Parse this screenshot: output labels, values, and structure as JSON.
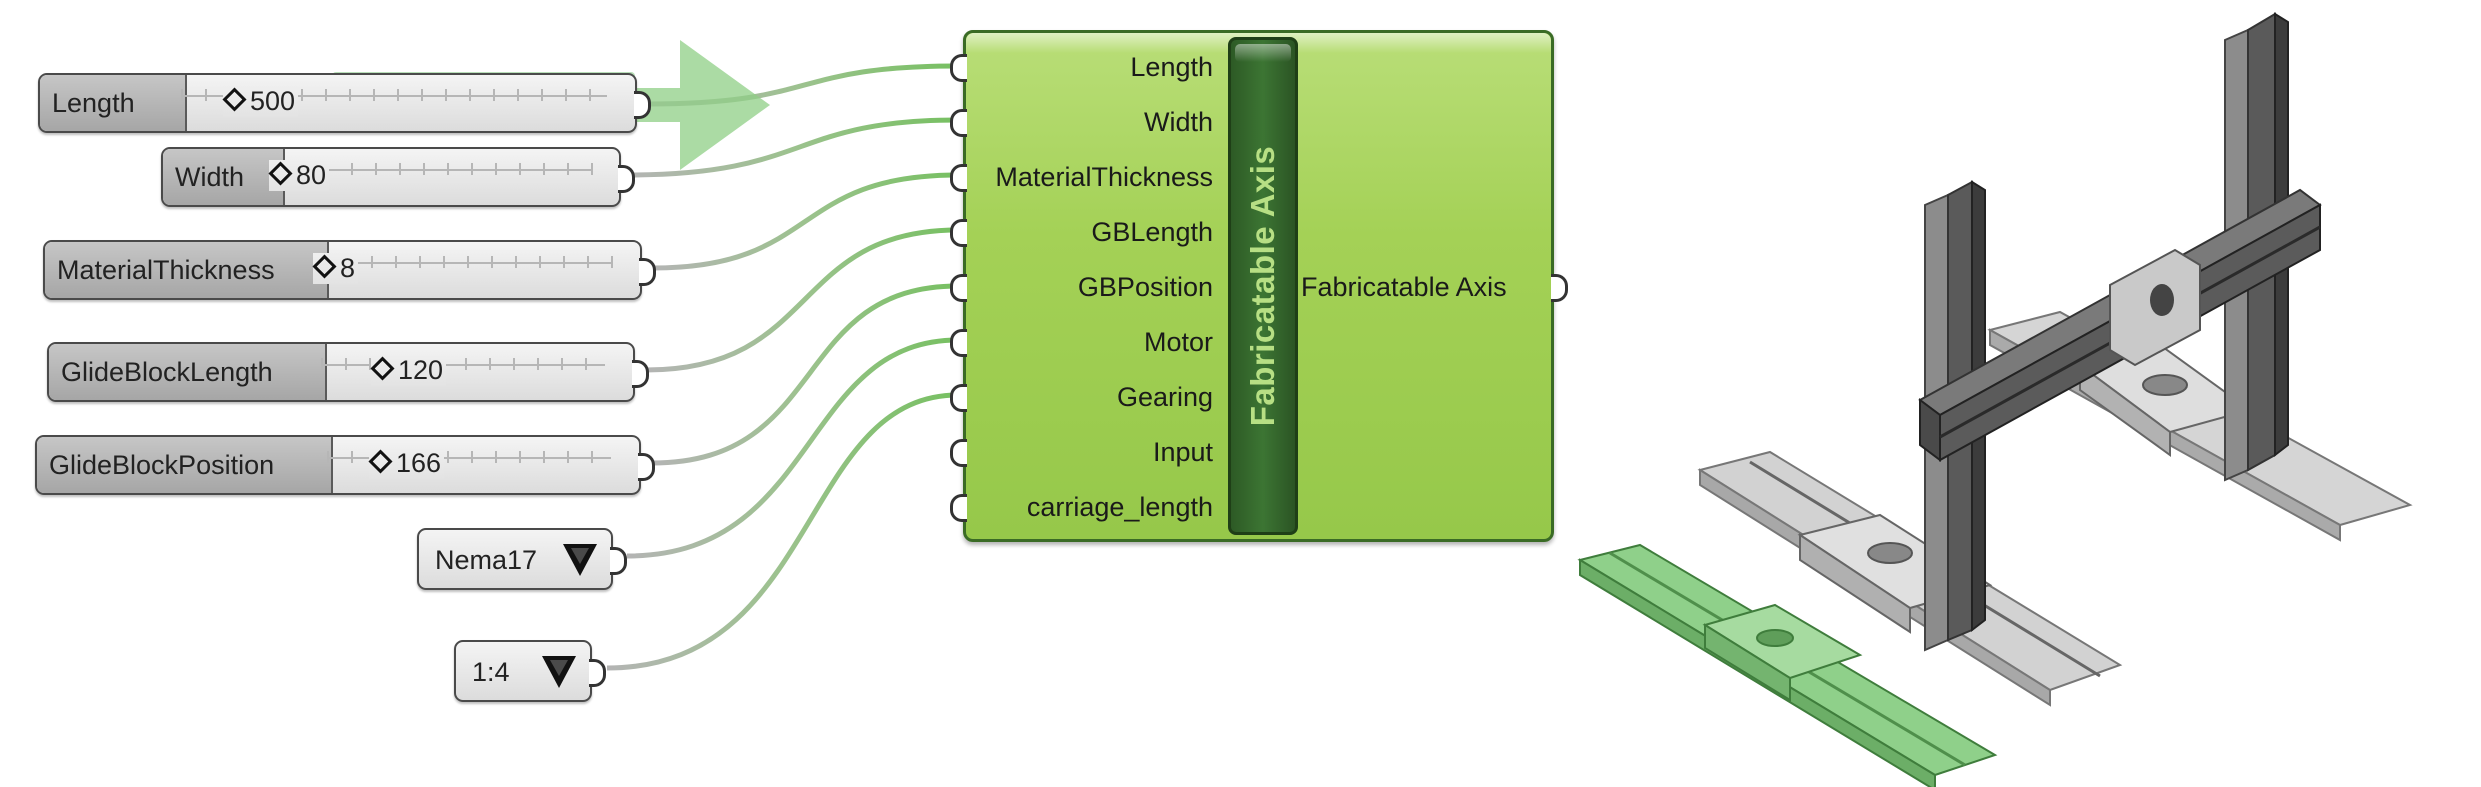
{
  "sliders": [
    {
      "label": "Length",
      "value": "500"
    },
    {
      "label": "Width",
      "value": "80"
    },
    {
      "label": "MaterialThickness",
      "value": "8"
    },
    {
      "label": "GlideBlockLength",
      "value": "120"
    },
    {
      "label": "GlideBlockPosition",
      "value": "166"
    }
  ],
  "value_lists": [
    {
      "value": "Nema17"
    },
    {
      "value": "1:4"
    }
  ],
  "component": {
    "title": "Fabricatable Axis",
    "inputs": [
      "Length",
      "Width",
      "MaterialThickness",
      "GBLength",
      "GBPosition",
      "Motor",
      "Gearing",
      "Input",
      "carriage_length"
    ],
    "output": "Fabricatable Axis"
  },
  "colors": {
    "component_fill": "#a4d156",
    "component_title": "#2d5a25",
    "wire_connected": "#7cc46a",
    "wire_idle": "#b4b4b4",
    "highlight": "#7fc27d"
  },
  "icons": {
    "flow_arrow": "right-arrow-icon",
    "dropdown": "triangle-down-icon",
    "slider_handle": "diamond-icon"
  }
}
